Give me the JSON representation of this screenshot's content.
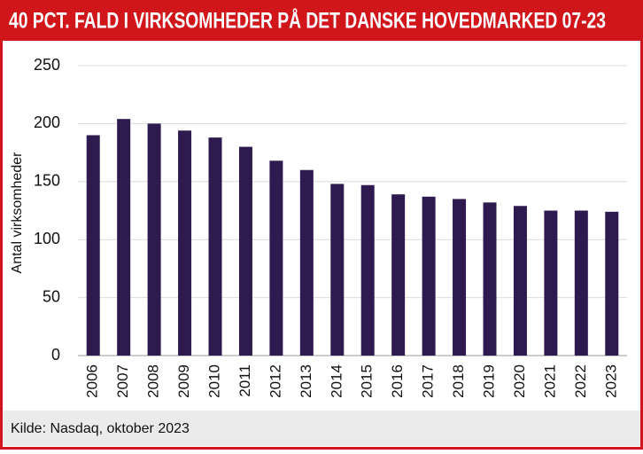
{
  "chart_data": {
    "type": "bar",
    "title": "40 PCT. FALD I VIRKSOMHEDER PÅ DET DANSKE HOVEDMARKED 07-23",
    "y_label": "Antal virksomheder",
    "source": "Kilde: Nasdaq, oktober 2023",
    "categories": [
      "2006",
      "2007",
      "2008",
      "2009",
      "2010",
      "2011",
      "2012",
      "2013",
      "2014",
      "2015",
      "2016",
      "2017",
      "2018",
      "2019",
      "2020",
      "2021",
      "2022",
      "2023"
    ],
    "values": [
      190,
      204,
      200,
      194,
      188,
      180,
      168,
      160,
      148,
      147,
      139,
      137,
      135,
      132,
      129,
      125,
      125,
      124
    ],
    "color": "#2e1a4f",
    "ylim": [
      0,
      250
    ],
    "yticks": [
      0,
      50,
      100,
      150,
      200,
      250
    ],
    "grid": true
  }
}
